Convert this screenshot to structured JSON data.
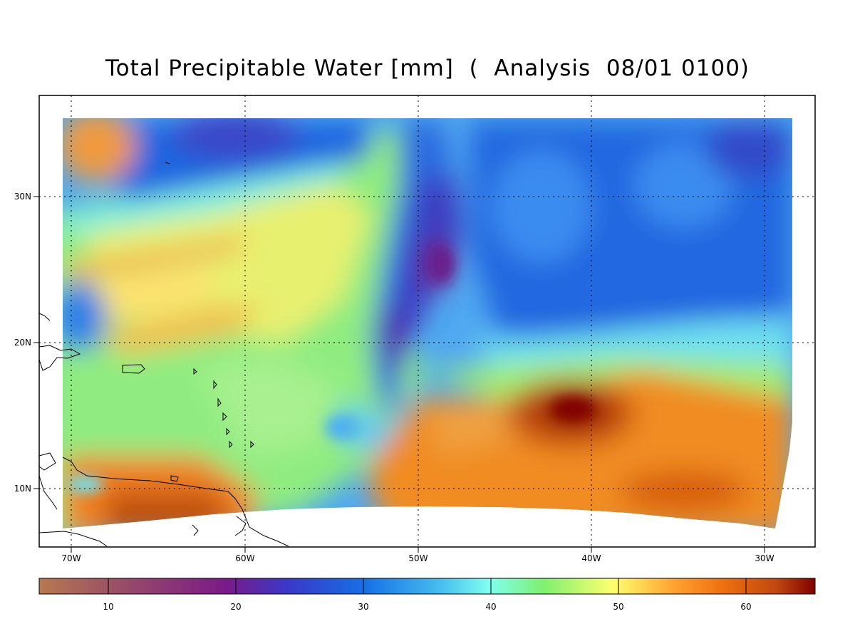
{
  "title": "Total Precipitable Water [mm]  (  Analysis  08/01 0100)",
  "map": {
    "variable": "Total Precipitable Water",
    "units": "mm",
    "lon_ticks": [
      "70W",
      "60W",
      "50W",
      "40W",
      "30W"
    ],
    "lat_ticks": [
      "30N",
      "20N",
      "10N"
    ],
    "lon_values": [
      -70,
      -60,
      -50,
      -40,
      -30
    ],
    "lat_values": [
      30,
      20,
      10
    ],
    "grid": true
  },
  "colorbar": {
    "ticks": [
      "10",
      "20",
      "30",
      "40",
      "50",
      "60"
    ],
    "tick_values": [
      10,
      20,
      30,
      40,
      50,
      60
    ],
    "range": [
      4,
      65
    ],
    "colors": [
      "#b87850",
      "#9a4f66",
      "#7a1a88",
      "#3a38c8",
      "#1670e6",
      "#48c0f0",
      "#80fff0",
      "#80f070",
      "#ffff70",
      "#ffa030",
      "#f07010",
      "#c04810",
      "#800000"
    ]
  },
  "features": [
    {
      "name": "high-tpw-core",
      "value_mm": 63
    },
    {
      "name": "dry-intrusion-core",
      "value_mm": 17
    }
  ]
}
